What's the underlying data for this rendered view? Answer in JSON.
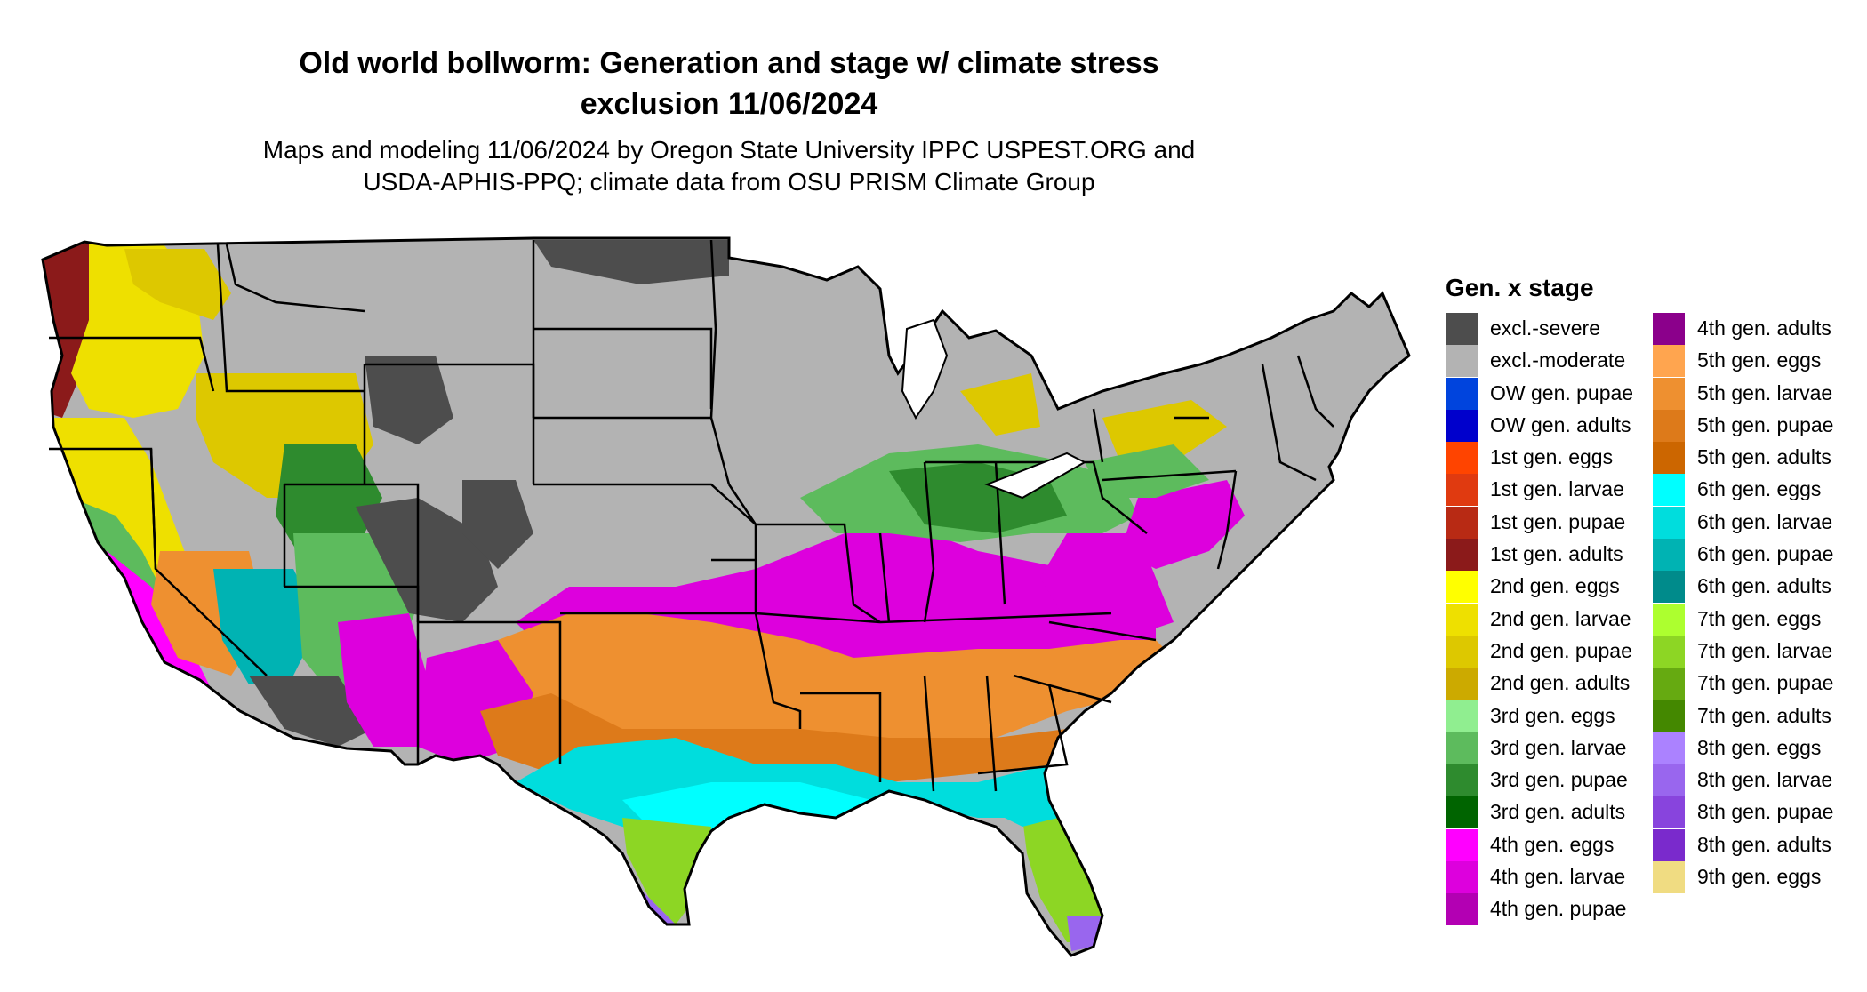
{
  "title_line1": "Old world bollworm: Generation and stage w/ climate stress",
  "title_line2": "exclusion 11/06/2024",
  "subtitle_line1": "Maps and modeling 11/06/2024 by Oregon State University IPPC USPEST.ORG and",
  "subtitle_line2": "USDA-APHIS-PPQ; climate data from OSU PRISM Climate Group",
  "legend": {
    "title": "Gen. x stage",
    "items": [
      {
        "label": "excl.-severe",
        "color": "#4D4D4D"
      },
      {
        "label": "excl.-moderate",
        "color": "#B3B3B3"
      },
      {
        "label": "OW gen. pupae",
        "color": "#0044DD"
      },
      {
        "label": "OW gen. adults",
        "color": "#0000CC"
      },
      {
        "label": "1st gen. eggs",
        "color": "#FF4400"
      },
      {
        "label": "1st gen. larvae",
        "color": "#E03A10"
      },
      {
        "label": "1st gen. pupae",
        "color": "#B82A14"
      },
      {
        "label": "1st gen. adults",
        "color": "#8B1A1A"
      },
      {
        "label": "2nd gen. eggs",
        "color": "#FFFF00"
      },
      {
        "label": "2nd gen. larvae",
        "color": "#EEE000"
      },
      {
        "label": "2nd gen. pupae",
        "color": "#DDC800"
      },
      {
        "label": "2nd gen. adults",
        "color": "#CCAA00"
      },
      {
        "label": "3rd gen. eggs",
        "color": "#90EE90"
      },
      {
        "label": "3rd gen. larvae",
        "color": "#5DBB5D"
      },
      {
        "label": "3rd gen. pupae",
        "color": "#2E8B2E"
      },
      {
        "label": "3rd gen. adults",
        "color": "#006400"
      },
      {
        "label": "4th gen. eggs",
        "color": "#FF00FF"
      },
      {
        "label": "4th gen. larvae",
        "color": "#DD00DD"
      },
      {
        "label": "4th gen. pupae",
        "color": "#B300B3"
      },
      {
        "label": "4th gen. adults",
        "color": "#8B008B"
      },
      {
        "label": "5th gen. eggs",
        "color": "#FFA54F"
      },
      {
        "label": "5th gen. larvae",
        "color": "#EE9030"
      },
      {
        "label": "5th gen. pupae",
        "color": "#DD7A1A"
      },
      {
        "label": "5th gen. adults",
        "color": "#CC6600"
      },
      {
        "label": "6th gen. eggs",
        "color": "#00FFFF"
      },
      {
        "label": "6th gen. larvae",
        "color": "#00DDDD"
      },
      {
        "label": "6th gen. pupae",
        "color": "#00B3B3"
      },
      {
        "label": "6th gen. adults",
        "color": "#008B8B"
      },
      {
        "label": "7th gen. eggs",
        "color": "#ADFF2F"
      },
      {
        "label": "7th gen. larvae",
        "color": "#8DD624"
      },
      {
        "label": "7th gen. pupae",
        "color": "#66AA11"
      },
      {
        "label": "7th gen. adults",
        "color": "#448800"
      },
      {
        "label": "8th gen. eggs",
        "color": "#AB82FF"
      },
      {
        "label": "8th gen. larvae",
        "color": "#9966EE"
      },
      {
        "label": "8th gen. pupae",
        "color": "#8844DD"
      },
      {
        "label": "8th gen. adults",
        "color": "#7A2ACC"
      },
      {
        "label": "9th gen. eggs",
        "color": "#F0DC82"
      }
    ]
  }
}
